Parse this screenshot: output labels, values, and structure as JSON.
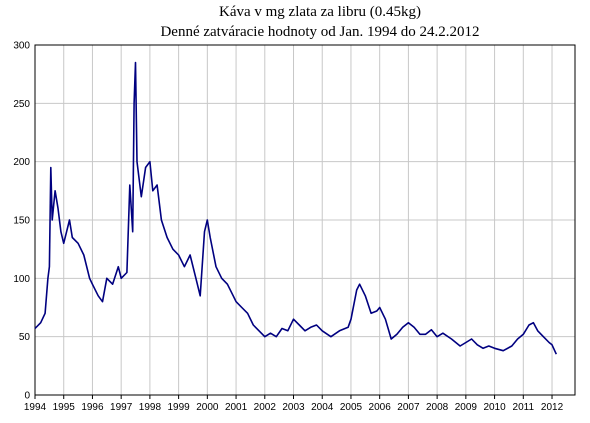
{
  "chart_data": {
    "type": "line",
    "title": "Káva v mg zlata za libru (0.45kg)",
    "subtitle": "Denné zatváracie hodnoty od Jan. 1994 do 24.2.2012",
    "x": [
      1994.0,
      1994.2,
      1994.35,
      1994.45,
      1994.5,
      1994.55,
      1994.6,
      1994.7,
      1994.8,
      1994.9,
      1995.0,
      1995.1,
      1995.2,
      1995.3,
      1995.5,
      1995.7,
      1995.9,
      1996.0,
      1996.2,
      1996.35,
      1996.5,
      1996.7,
      1996.9,
      1997.0,
      1997.2,
      1997.3,
      1997.4,
      1997.45,
      1997.5,
      1997.55,
      1997.7,
      1997.85,
      1998.0,
      1998.1,
      1998.25,
      1998.4,
      1998.6,
      1998.8,
      1999.0,
      1999.2,
      1999.4,
      1999.6,
      1999.75,
      1999.9,
      2000.0,
      2000.1,
      2000.3,
      2000.5,
      2000.7,
      2000.9,
      2001.0,
      2001.2,
      2001.4,
      2001.6,
      2001.8,
      2002.0,
      2002.2,
      2002.4,
      2002.6,
      2002.8,
      2003.0,
      2003.2,
      2003.4,
      2003.6,
      2003.8,
      2004.0,
      2004.3,
      2004.6,
      2004.9,
      2005.0,
      2005.2,
      2005.3,
      2005.5,
      2005.7,
      2005.9,
      2006.0,
      2006.2,
      2006.4,
      2006.6,
      2006.8,
      2007.0,
      2007.2,
      2007.4,
      2007.6,
      2007.8,
      2008.0,
      2008.2,
      2008.5,
      2008.8,
      2009.0,
      2009.2,
      2009.4,
      2009.6,
      2009.8,
      2010.0,
      2010.3,
      2010.6,
      2010.8,
      2011.0,
      2011.2,
      2011.35,
      2011.5,
      2011.7,
      2011.9,
      2012.0,
      2012.15
    ],
    "series": [
      {
        "color": "#000080",
        "values": [
          57,
          62,
          70,
          100,
          110,
          195,
          150,
          175,
          160,
          140,
          130,
          140,
          150,
          135,
          130,
          120,
          100,
          95,
          85,
          80,
          100,
          95,
          110,
          100,
          105,
          180,
          140,
          250,
          285,
          200,
          170,
          195,
          200,
          175,
          180,
          150,
          135,
          125,
          120,
          110,
          120,
          100,
          85,
          140,
          150,
          135,
          110,
          100,
          95,
          85,
          80,
          75,
          70,
          60,
          55,
          50,
          53,
          50,
          57,
          55,
          65,
          60,
          55,
          58,
          60,
          55,
          50,
          55,
          58,
          65,
          90,
          95,
          85,
          70,
          72,
          75,
          65,
          48,
          52,
          58,
          62,
          58,
          52,
          52,
          56,
          50,
          53,
          48,
          42,
          45,
          48,
          43,
          40,
          42,
          40,
          38,
          42,
          48,
          52,
          60,
          62,
          55,
          50,
          45,
          43,
          35
        ]
      }
    ],
    "xlim": [
      1994,
      2012.8
    ],
    "ylim": [
      0,
      300
    ],
    "xticks": [
      1994,
      1995,
      1996,
      1997,
      1998,
      1999,
      2000,
      2001,
      2002,
      2003,
      2004,
      2005,
      2006,
      2007,
      2008,
      2009,
      2010,
      2011,
      2012
    ],
    "yticks": [
      0,
      50,
      100,
      150,
      200,
      250,
      300
    ],
    "grid": true
  }
}
